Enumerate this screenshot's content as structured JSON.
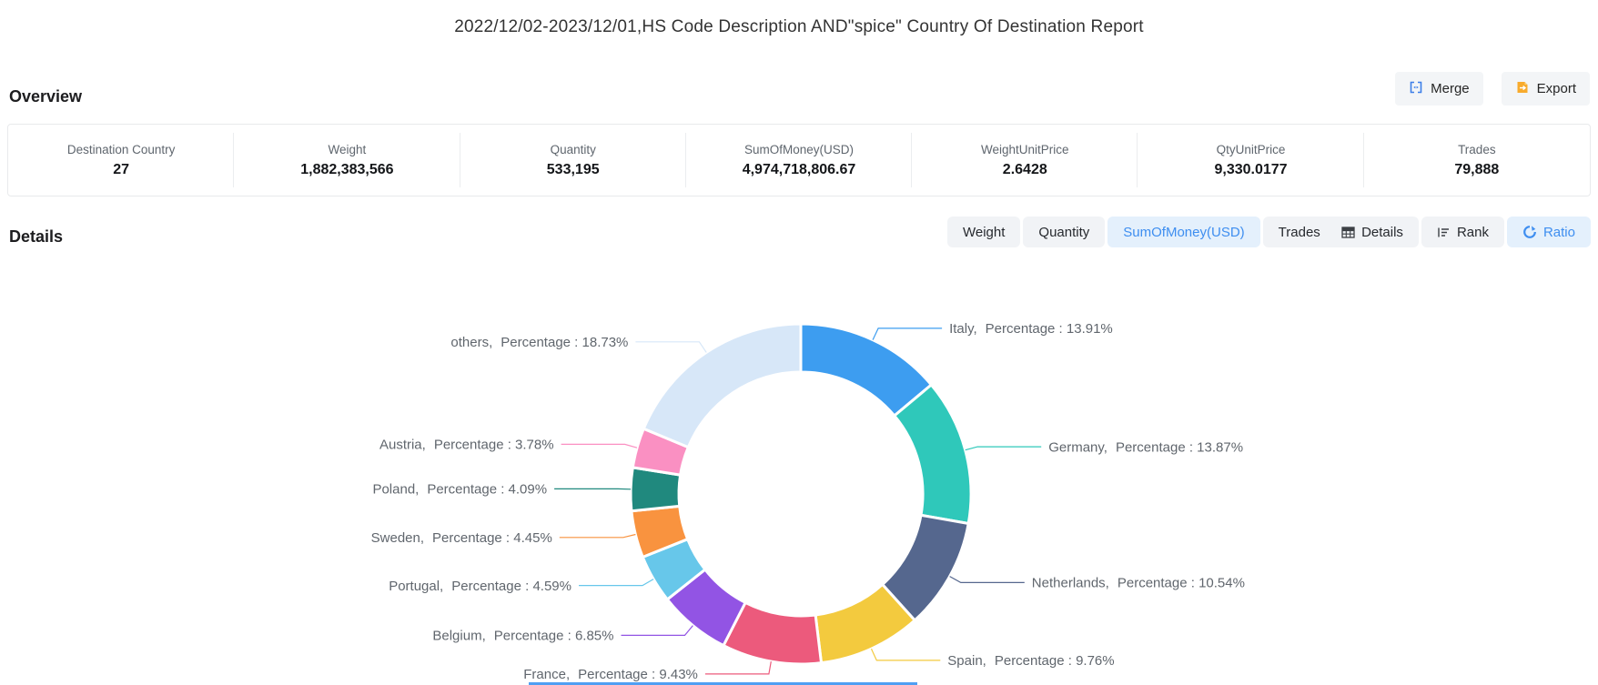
{
  "page_title": "2022/12/02-2023/12/01,HS Code Description AND\"spice\" Country Of Destination Report",
  "overview": {
    "heading": "Overview",
    "buttons": {
      "merge": "Merge",
      "export": "Export"
    },
    "stats": [
      {
        "label": "Destination Country",
        "value": "27"
      },
      {
        "label": "Weight",
        "value": "1,882,383,566"
      },
      {
        "label": "Quantity",
        "value": "533,195"
      },
      {
        "label": "SumOfMoney(USD)",
        "value": "4,974,718,806.67"
      },
      {
        "label": "WeightUnitPrice",
        "value": "2.6428"
      },
      {
        "label": "QtyUnitPrice",
        "value": "9,330.0177"
      },
      {
        "label": "Trades",
        "value": "79,888"
      }
    ]
  },
  "details": {
    "heading": "Details",
    "metric_tabs": [
      {
        "label": "Weight",
        "active": false
      },
      {
        "label": "Quantity",
        "active": false
      },
      {
        "label": "SumOfMoney(USD)",
        "active": true
      },
      {
        "label": "Trades",
        "active": false
      }
    ],
    "view_tabs": [
      {
        "label": "Details",
        "icon": "table-icon",
        "active": false
      },
      {
        "label": "Rank",
        "icon": "rank-icon",
        "active": false
      },
      {
        "label": "Ratio",
        "icon": "ratio-icon",
        "active": true
      }
    ]
  },
  "chart_data": {
    "type": "pie",
    "subtype": "donut",
    "title": "",
    "legend": "none",
    "label_prefix": "Percentage : ",
    "unit": "%",
    "start_angle_deg": 0,
    "clockwise": true,
    "slices": [
      {
        "name": "Italy",
        "value": 13.91,
        "color": "#3d9df0"
      },
      {
        "name": "Germany",
        "value": 13.87,
        "color": "#2fc8ba"
      },
      {
        "name": "Netherlands",
        "value": 10.54,
        "color": "#55678e"
      },
      {
        "name": "Spain",
        "value": 9.76,
        "color": "#f3ca3e"
      },
      {
        "name": "France",
        "value": 9.43,
        "color": "#ec5a7c"
      },
      {
        "name": "Belgium",
        "value": 6.85,
        "color": "#9254e4"
      },
      {
        "name": "Portugal",
        "value": 4.59,
        "color": "#67c7ea"
      },
      {
        "name": "Sweden",
        "value": 4.45,
        "color": "#f9933f"
      },
      {
        "name": "Poland",
        "value": 4.09,
        "color": "#20897e"
      },
      {
        "name": "Austria",
        "value": 3.78,
        "color": "#fa90c2"
      },
      {
        "name": "others",
        "value": 18.73,
        "color": "#d7e7f8"
      }
    ]
  },
  "accent": {
    "primary_blue": "#3e8ef0",
    "export_orange": "#f8ab2d",
    "label_text": "#60666d"
  }
}
